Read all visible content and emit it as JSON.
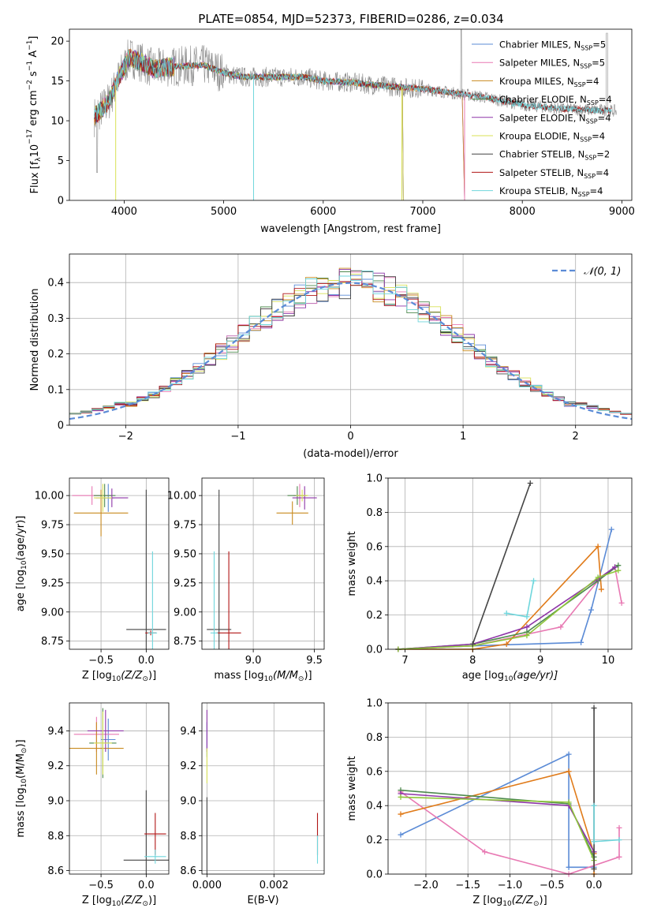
{
  "figure_title": "PLATE=0854, MJD=52373, FIBERID=0286, z=0.034",
  "colors": {
    "Chabrier MILES": "#5b8bd6",
    "Salpeter MILES": "#e879b3",
    "Kroupa MILES": "#c88a1e",
    "Chabrier ELODIE": "#4e8a4e",
    "Salpeter ELODIE": "#8e35a8",
    "Kroupa ELODIE": "#d8e056",
    "Chabrier STELIB": "#444444",
    "Salpeter STELIB": "#b01515",
    "Kroupa STELIB": "#6fd6dc",
    "data_gray": "#8a8a8a",
    "normal_curve": "#5b8bd6",
    "orange_line": "#e07b1a",
    "green_line": "#8fc63a"
  },
  "chart_data": [
    {
      "id": "spectrum",
      "type": "line",
      "title": "PLATE=0854, MJD=52373, FIBERID=0286, z=0.034",
      "xlabel": "wavelength [Angstrom, rest frame]",
      "ylabel_parts": [
        "Flux [f",
        "λ",
        "10",
        "−17",
        " erg cm",
        "−2",
        " s",
        "−1",
        " A",
        "−1",
        "]"
      ],
      "xlim": [
        3450,
        9100
      ],
      "ylim": [
        0,
        21.5
      ],
      "xticks": [
        4000,
        5000,
        6000,
        7000,
        8000,
        9000
      ],
      "yticks": [
        0,
        5,
        10,
        15,
        20
      ],
      "legend_location": "upper right",
      "legend": [
        {
          "name": "Chabrier MILES",
          "nssp": "5"
        },
        {
          "name": "Salpeter MILES",
          "nssp": "5"
        },
        {
          "name": "Kroupa MILES",
          "nssp": "4"
        },
        {
          "name": "Chabrier ELODIE",
          "nssp": "4"
        },
        {
          "name": "Salpeter ELODIE",
          "nssp": "4"
        },
        {
          "name": "Kroupa ELODIE",
          "nssp": "4"
        },
        {
          "name": "Chabrier STELIB",
          "nssp": "2"
        },
        {
          "name": "Salpeter STELIB",
          "nssp": "4"
        },
        {
          "name": "Kroupa STELIB",
          "nssp": "4"
        }
      ],
      "continuum": {
        "x": [
          3700,
          3850,
          3950,
          4050,
          4150,
          4300,
          4500,
          4800,
          5000,
          5200,
          5500,
          5800,
          6000,
          6300,
          6500,
          6800,
          7000,
          7300,
          7600,
          8000,
          8400,
          8800,
          9000
        ],
        "y": [
          10.5,
          12.5,
          15.5,
          18,
          17.5,
          16.5,
          16.8,
          17,
          16,
          15.5,
          15.5,
          15.5,
          15,
          14.8,
          14.5,
          14.2,
          14,
          13.5,
          13,
          12,
          11.5,
          11.3,
          11.2
        ]
      },
      "model_ranges": {
        "MILES": [
          3700,
          7400
        ],
        "ELODIE": [
          3700,
          6800
        ],
        "STELIB": [
          3700,
          8900
        ]
      }
    },
    {
      "id": "residual_hist",
      "type": "step",
      "xlabel": "(data-model)/error",
      "ylabel": "Normed distribution",
      "xlim": [
        -2.5,
        2.5
      ],
      "ylim": [
        0,
        0.48
      ],
      "xticks": [
        -2,
        -1,
        0,
        1,
        2
      ],
      "yticks": [
        0,
        0.1,
        0.2,
        0.3,
        0.4
      ],
      "legend_location": "upper right",
      "normal_label": "𝒩(0, 1)",
      "bin_width": 0.1,
      "grid": true
    },
    {
      "id": "age_vs_Z",
      "type": "errorbar",
      "xlabel_parts": [
        "Z [log",
        "10",
        "(Z/Z",
        "⊙",
        ")]"
      ],
      "ylabel_parts": [
        "age  [log",
        "10",
        "(age/yr)]"
      ],
      "xlim": [
        -0.85,
        0.25
      ],
      "ylim": [
        8.68,
        10.15
      ],
      "xticks": [
        -0.5,
        0.0
      ],
      "yticks": [
        8.75,
        9.0,
        9.25,
        9.5,
        9.75,
        10.0
      ],
      "grid": true,
      "points": [
        {
          "model": "Chabrier MILES",
          "x": -0.42,
          "xerr": 0.07,
          "y": 9.98,
          "yerr": 0.12
        },
        {
          "model": "Salpeter MILES",
          "x": -0.6,
          "xerr": 0.22,
          "y": 10.0,
          "yerr": 0.08
        },
        {
          "model": "Kroupa MILES",
          "x": -0.5,
          "xerr": 0.3,
          "y": 9.85,
          "yerr": 0.2
        },
        {
          "model": "Chabrier ELODIE",
          "x": -0.46,
          "xerr": 0.12,
          "y": 10.0,
          "yerr": 0.1
        },
        {
          "model": "Salpeter ELODIE",
          "x": -0.38,
          "xerr": 0.18,
          "y": 9.98,
          "yerr": 0.08
        },
        {
          "model": "Kroupa ELODIE",
          "x": -0.48,
          "xerr": 0.1,
          "y": 9.98,
          "yerr": 0.12
        },
        {
          "model": "Chabrier STELIB",
          "x": 0.0,
          "xerr": 0.22,
          "y": 8.85,
          "yerr": 1.2
        },
        {
          "model": "Salpeter STELIB",
          "x": 0.05,
          "xerr": 0.06,
          "y": 8.82,
          "yerr": 0.02
        },
        {
          "model": "Kroupa STELIB",
          "x": 0.07,
          "xerr": 0.05,
          "y": 8.82,
          "yerr": 0.7
        }
      ]
    },
    {
      "id": "age_vs_mass",
      "type": "errorbar",
      "xlabel_parts": [
        "mass [log",
        "10",
        "(M/M",
        "⊙",
        ")]"
      ],
      "ylabel_parts": [
        "",
        "",
        ""
      ],
      "xlim": [
        8.58,
        9.58
      ],
      "ylim": [
        8.68,
        10.15
      ],
      "xticks": [
        9.0,
        9.5
      ],
      "yticks": [
        8.75,
        9.0,
        9.25,
        9.5,
        9.75,
        10.0
      ],
      "grid": true,
      "points": [
        {
          "model": "Chabrier MILES",
          "x": 9.38,
          "xerr": 0.03,
          "y": 10.0,
          "yerr": 0.04
        },
        {
          "model": "Salpeter MILES",
          "x": 9.38,
          "xerr": 0.05,
          "y": 10.0,
          "yerr": 0.1
        },
        {
          "model": "Kroupa MILES",
          "x": 9.32,
          "xerr": 0.13,
          "y": 9.85,
          "yerr": 0.1
        },
        {
          "model": "Chabrier ELODIE",
          "x": 9.36,
          "xerr": 0.08,
          "y": 10.0,
          "yerr": 0.08
        },
        {
          "model": "Salpeter ELODIE",
          "x": 9.42,
          "xerr": 0.1,
          "y": 9.98,
          "yerr": 0.1
        },
        {
          "model": "Kroupa ELODIE",
          "x": 9.4,
          "xerr": 0.05,
          "y": 10.0,
          "yerr": 0.05
        },
        {
          "model": "Chabrier STELIB",
          "x": 8.72,
          "xerr": 0.1,
          "y": 8.85,
          "yerr": 1.2
        },
        {
          "model": "Salpeter STELIB",
          "x": 8.8,
          "xerr": 0.1,
          "y": 8.82,
          "yerr": 0.7
        },
        {
          "model": "Kroupa STELIB",
          "x": 8.68,
          "xerr": 0.03,
          "y": 8.82,
          "yerr": 0.7
        }
      ]
    },
    {
      "id": "mass_vs_Z",
      "type": "errorbar",
      "xlabel_parts": [
        "Z [log",
        "10",
        "(Z/Z",
        "⊙",
        ")]"
      ],
      "ylabel_parts": [
        "mass [log",
        "10",
        "(M/M",
        "⊙",
        ")]"
      ],
      "xlim": [
        -0.85,
        0.25
      ],
      "ylim": [
        8.58,
        9.56
      ],
      "xticks": [
        -0.5,
        0.0
      ],
      "yticks": [
        8.6,
        8.8,
        9.0,
        9.2,
        9.4
      ],
      "grid": true,
      "points": [
        {
          "model": "Chabrier MILES",
          "x": -0.42,
          "xerr": 0.08,
          "y": 9.35,
          "yerr": 0.12
        },
        {
          "model": "Salpeter MILES",
          "x": -0.55,
          "xerr": 0.25,
          "y": 9.38,
          "yerr": 0.1
        },
        {
          "model": "Kroupa MILES",
          "x": -0.55,
          "xerr": 0.3,
          "y": 9.3,
          "yerr": 0.15
        },
        {
          "model": "Chabrier ELODIE",
          "x": -0.48,
          "xerr": 0.15,
          "y": 9.33,
          "yerr": 0.2
        },
        {
          "model": "Salpeter ELODIE",
          "x": -0.45,
          "xerr": 0.2,
          "y": 9.4,
          "yerr": 0.12
        },
        {
          "model": "Kroupa ELODIE",
          "x": -0.48,
          "xerr": 0.1,
          "y": 9.33,
          "yerr": 0.18
        },
        {
          "model": "Chabrier STELIB",
          "x": 0.0,
          "xerr": 0.25,
          "y": 8.66,
          "yerr": 0.4
        },
        {
          "model": "Salpeter STELIB",
          "x": 0.1,
          "xerr": 0.12,
          "y": 8.81,
          "yerr": 0.12
        },
        {
          "model": "Kroupa STELIB",
          "x": 0.1,
          "xerr": 0.12,
          "y": 8.68,
          "yerr": 0.04
        }
      ]
    },
    {
      "id": "mass_vs_EBV",
      "type": "errorbar",
      "xlabel": "E(B-V)",
      "xlim": [
        -0.00015,
        0.0035
      ],
      "ylim": [
        8.58,
        9.56
      ],
      "xticks": [
        0.0,
        0.002
      ],
      "yticks": [
        8.6,
        8.8,
        9.0,
        9.2,
        9.4
      ],
      "grid": true,
      "points": [
        {
          "model": "Chabrier MILES",
          "x": 0.0,
          "xerr": 0.0,
          "y": 9.35,
          "yerr": 0.1
        },
        {
          "model": "Salpeter ELODIE",
          "x": 0.0,
          "xerr": 0.0,
          "y": 9.4,
          "yerr": 0.12
        },
        {
          "model": "Kroupa ELODIE",
          "x": 0.0,
          "xerr": 0.0,
          "y": 9.2,
          "yerr": 0.1
        },
        {
          "model": "Chabrier STELIB",
          "x": 0.0,
          "xerr": 0.0,
          "y": 8.8,
          "yerr": 0.22
        },
        {
          "model": "Salpeter STELIB",
          "x": 0.0033,
          "xerr": 0.0,
          "y": 8.81,
          "yerr": 0.12
        },
        {
          "model": "Kroupa STELIB",
          "x": 0.0033,
          "xerr": 0.0,
          "y": 8.72,
          "yerr": 0.08
        }
      ]
    },
    {
      "id": "mass_weight_vs_age",
      "type": "line",
      "xlabel_parts": [
        "age  [log",
        "10",
        "(age/yr)]"
      ],
      "ylabel": "mass weight",
      "xlim": [
        6.75,
        10.35
      ],
      "ylim": [
        0,
        1.0
      ],
      "xticks": [
        7,
        8,
        9,
        10
      ],
      "yticks": [
        0.0,
        0.2,
        0.4,
        0.6,
        0.8,
        1.0
      ],
      "grid": true,
      "series": [
        {
          "model": "Chabrier MILES",
          "x": [
            6.9,
            8.0,
            9.6,
            9.75,
            10.05
          ],
          "y": [
            0.0,
            0.02,
            0.04,
            0.23,
            0.7
          ]
        },
        {
          "model": "Salpeter MILES",
          "x": [
            6.9,
            8.0,
            9.3,
            9.85,
            10.1,
            10.2
          ],
          "y": [
            0.0,
            0.02,
            0.13,
            0.4,
            0.48,
            0.27
          ]
        },
        {
          "model": "Kroupa MILES",
          "x": [
            6.9,
            8.0,
            8.5,
            9.85,
            9.9
          ],
          "y": [
            0.0,
            0.0,
            0.03,
            0.6,
            0.35
          ]
        },
        {
          "model": "Chabrier ELODIE",
          "x": [
            6.9,
            8.0,
            8.8,
            9.85,
            10.15
          ],
          "y": [
            0.0,
            0.03,
            0.1,
            0.4,
            0.49
          ]
        },
        {
          "model": "Salpeter ELODIE",
          "x": [
            6.9,
            8.0,
            8.8,
            9.85,
            10.1
          ],
          "y": [
            0.0,
            0.03,
            0.13,
            0.41,
            0.48
          ]
        },
        {
          "model": "Kroupa ELODIE",
          "x": [
            6.9,
            8.0,
            8.8,
            9.85,
            10.15
          ],
          "y": [
            0.0,
            0.02,
            0.08,
            0.42,
            0.46
          ]
        },
        {
          "model": "Chabrier STELIB",
          "x": [
            8.0,
            8.85
          ],
          "y": [
            0.03,
            0.97
          ]
        },
        {
          "model": "Kroupa STELIB",
          "x": [
            8.5,
            8.8,
            8.9
          ],
          "y": [
            0.21,
            0.19,
            0.4
          ]
        }
      ]
    },
    {
      "id": "mass_weight_vs_Z",
      "type": "line",
      "xlabel_parts": [
        "Z [log",
        "10",
        "(Z/Z",
        "⊙",
        ")]"
      ],
      "ylabel": "mass weight",
      "xlim": [
        -2.45,
        0.45
      ],
      "ylim": [
        0,
        1.0
      ],
      "xticks": [
        -2.0,
        -1.5,
        -1.0,
        -0.5,
        0.0
      ],
      "yticks": [
        0.0,
        0.2,
        0.4,
        0.6,
        0.8,
        1.0
      ],
      "grid": true,
      "series": [
        {
          "model": "Chabrier MILES",
          "x": [
            -2.3,
            -0.3,
            -0.3,
            0.0
          ],
          "y": [
            0.23,
            0.7,
            0.04,
            0.04
          ]
        },
        {
          "model": "Salpeter MILES",
          "x": [
            -2.3,
            -1.3,
            -0.3,
            0.3,
            0.3
          ],
          "y": [
            0.48,
            0.13,
            0.0,
            0.1,
            0.27
          ]
        },
        {
          "model": "Kroupa MILES",
          "x": [
            -2.3,
            -0.3,
            0.0,
            0.0
          ],
          "y": [
            0.35,
            0.6,
            0.12,
            0.0
          ]
        },
        {
          "model": "Chabrier ELODIE",
          "x": [
            -2.3,
            -0.3,
            0.0
          ],
          "y": [
            0.49,
            0.41,
            0.1
          ]
        },
        {
          "model": "Salpeter ELODIE",
          "x": [
            -2.3,
            -0.3,
            0.0
          ],
          "y": [
            0.47,
            0.4,
            0.13
          ]
        },
        {
          "model": "Kroupa ELODIE",
          "x": [
            -2.3,
            -0.3,
            0.0
          ],
          "y": [
            0.45,
            0.42,
            0.08
          ]
        },
        {
          "model": "Chabrier STELIB",
          "x": [
            0.0,
            0.0
          ],
          "y": [
            0.03,
            0.97
          ]
        },
        {
          "model": "Kroupa STELIB",
          "x": [
            0.0,
            0.0,
            0.3
          ],
          "y": [
            0.4,
            0.19,
            0.2
          ]
        }
      ]
    }
  ]
}
